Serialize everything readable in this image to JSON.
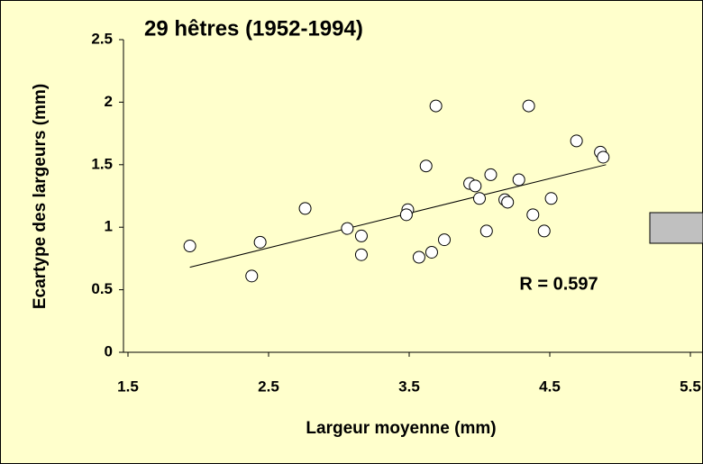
{
  "chart_data": {
    "type": "scatter",
    "title": "29 hêtres (1952-1994)",
    "x_label": "Largeur moyenne (mm)",
    "y_label": "Ecartype des largeurs (mm)",
    "annotation": "R = 0.597",
    "series": [
      {
        "color": "#ffffff",
        "x": [
          1.94,
          2.38,
          2.44,
          2.76,
          3.06,
          3.16,
          3.16,
          3.49,
          3.48,
          3.57,
          3.62,
          3.66,
          3.69,
          3.75,
          3.93,
          3.97,
          4.0,
          4.05,
          4.08,
          4.18,
          4.2,
          4.28,
          4.35,
          4.38,
          4.46,
          4.51,
          4.69,
          4.86,
          4.88
        ],
        "values": [
          0.85,
          0.61,
          0.88,
          1.15,
          0.99,
          0.93,
          0.78,
          1.14,
          1.1,
          0.76,
          1.49,
          0.8,
          1.97,
          0.9,
          1.35,
          1.33,
          1.23,
          0.97,
          1.42,
          1.22,
          1.2,
          1.38,
          1.97,
          1.1,
          0.97,
          1.23,
          1.69,
          1.6,
          1.56
        ]
      }
    ],
    "trendline": {
      "x": [
        1.94,
        4.9
      ],
      "values": [
        0.68,
        1.5
      ]
    },
    "xlim": [
      1.5,
      5.5
    ],
    "xticks": [
      1.5,
      2.5,
      3.5,
      4.5,
      5.5
    ],
    "ylim": [
      0,
      2.5
    ],
    "yticks": [
      0,
      0.5,
      1,
      1.5,
      2,
      2.5
    ],
    "grid": false
  }
}
